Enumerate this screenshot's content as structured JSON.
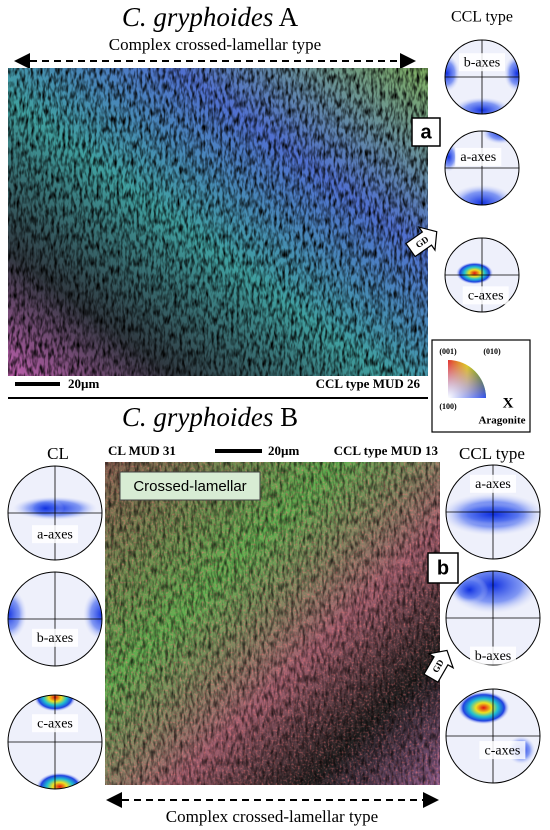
{
  "panel_a": {
    "title_species": "C. gryphoides",
    "title_suffix": "A",
    "arrow_label": "Complex crossed-lamellar type",
    "pole_figures_title": "CCL type",
    "pole_figures": [
      "b-axes",
      "a-axes",
      "c-axes"
    ],
    "panel_label": "a",
    "direction_label": "GD",
    "scale_bar": "20µm",
    "map_caption": "CCL type MUD 26"
  },
  "legend": {
    "corners": [
      "(001)",
      "(010)",
      "(100)"
    ],
    "axis": "X",
    "mineral": "Aragonite"
  },
  "panel_b": {
    "title_species": "C. gryphoides",
    "title_suffix": "B",
    "left_title": "CL",
    "left_pole_figures": [
      "a-axes",
      "b-axes",
      "c-axes"
    ],
    "left_caption": "CL MUD 31",
    "scale_bar": "20µm",
    "right_caption": "CCL type MUD 13",
    "right_title": "CCL type",
    "right_pole_figures": [
      "a-axes",
      "b-axes",
      "c-axes"
    ],
    "inset_label": "Crossed-lamellar",
    "panel_label": "b",
    "direction_label": "GD",
    "arrow_label": "Complex crossed-lamellar type"
  }
}
